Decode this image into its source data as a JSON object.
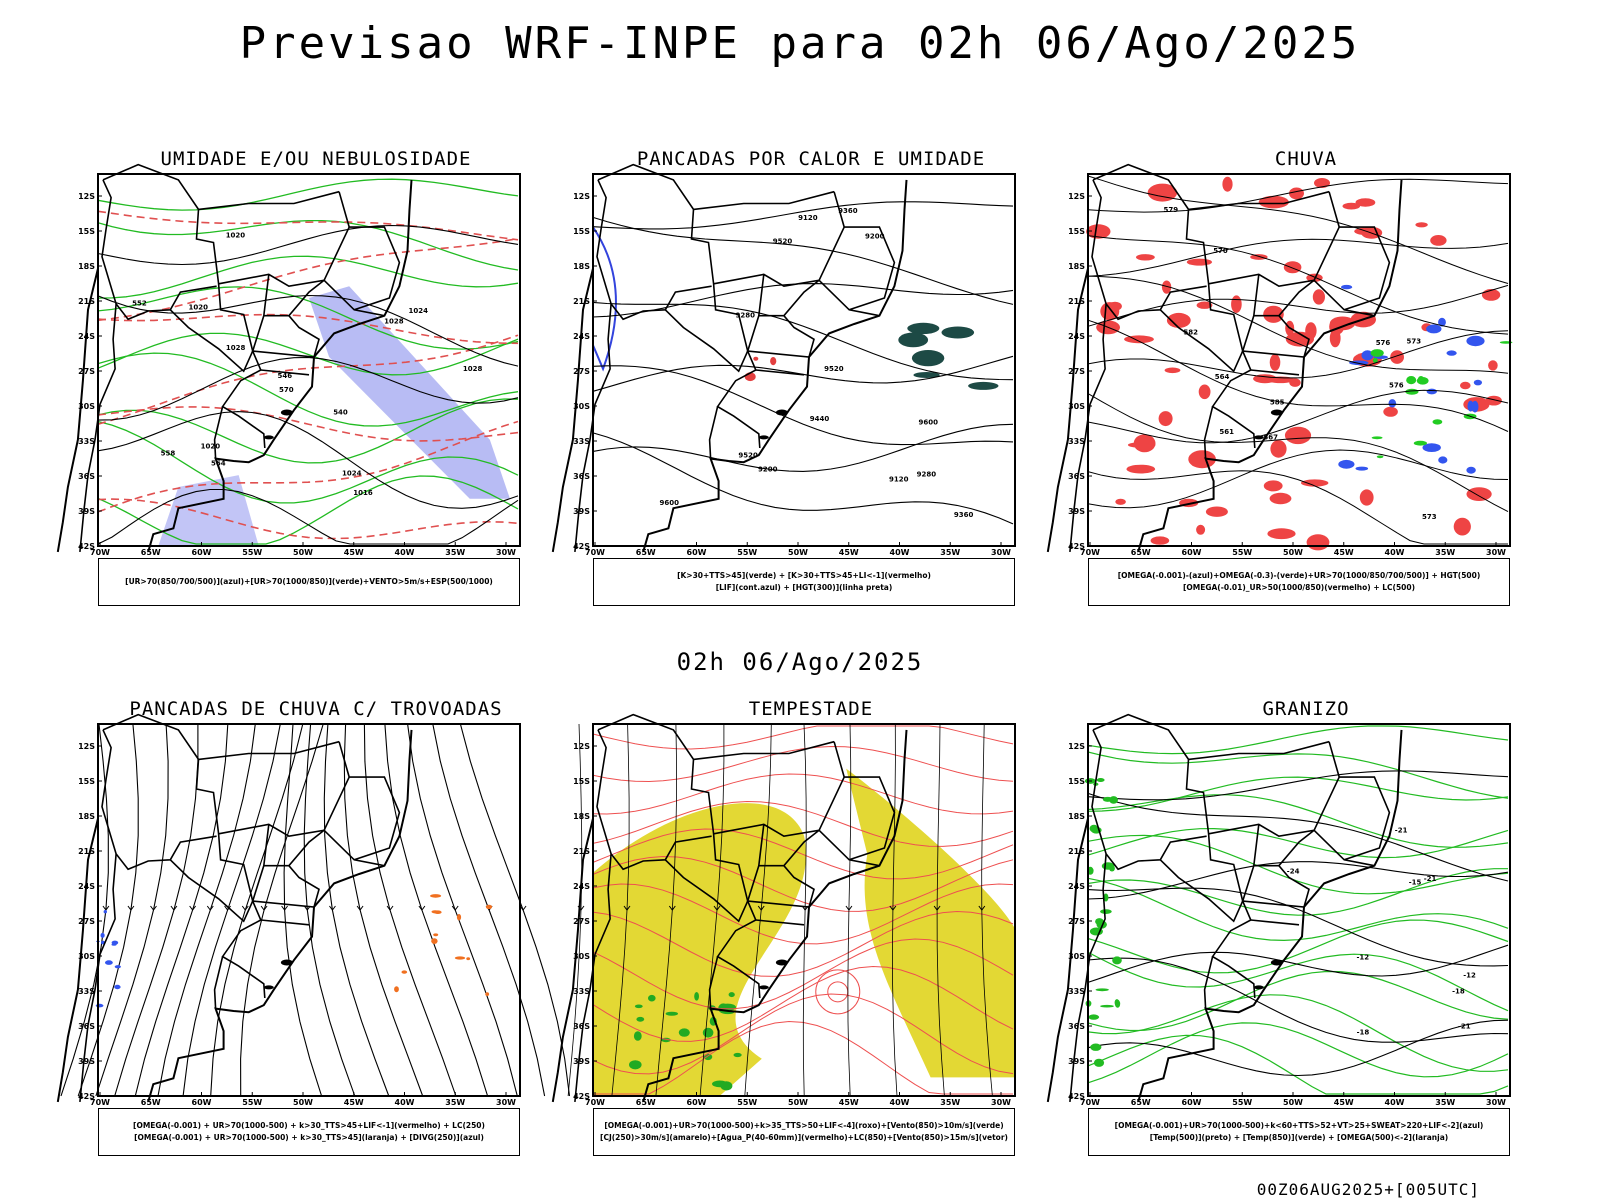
{
  "title": "Previsao WRF-INPE  para 02h 06/Ago/2025",
  "subtitle": "02h 06/Ago/2025",
  "footer_stamp": "00Z06AUG2025+[005UTC]",
  "chart_data": [
    {
      "type": "map",
      "title": "UMIDADE E/OU NEBULOSIDADE",
      "legend": [
        "[UR>70(850/700/500)](azul)+[UR>70(1000/850)](verde)+VENTO>5m/s+ESP(500/1000)"
      ],
      "contour_labels": [
        "1016",
        "1020",
        "1020",
        "1020",
        "1024",
        "1024",
        "1028",
        "1028",
        "570",
        "564",
        "558",
        "552",
        "546",
        "540",
        "1028"
      ],
      "xticks": [
        "70W",
        "65W",
        "60W",
        "55W",
        "50W",
        "45W",
        "40W",
        "35W",
        "30W"
      ],
      "yticks": [
        "12S",
        "15S",
        "18S",
        "21S",
        "24S",
        "27S",
        "30S",
        "33S",
        "36S",
        "39S",
        "42S"
      ]
    },
    {
      "type": "map",
      "title": "PANCADAS POR CALOR E UMIDADE",
      "legend": [
        "[K>30+TTS>45](verde) + [K>30+TTS>45+LI<-1](vermelho)",
        "[LIF](cont.azul) + [HGT(300)](linha preta)"
      ],
      "contour_labels": [
        "9600",
        "9600",
        "9520",
        "9440",
        "9520",
        "9360",
        "9280",
        "9200",
        "9120",
        "9520",
        "9360",
        "9280",
        "9200",
        "9120"
      ],
      "xticks": [
        "70W",
        "65W",
        "60W",
        "55W",
        "50W",
        "45W",
        "40W",
        "35W",
        "30W"
      ],
      "yticks": [
        "12S",
        "15S",
        "18S",
        "21S",
        "24S",
        "27S",
        "30S",
        "33S",
        "36S",
        "39S",
        "42S"
      ]
    },
    {
      "type": "map",
      "title": "CHUVA",
      "legend": [
        "[OMEGA(-0.001)-(azul)+OMEGA(-0.3)-(verde)+UR>70(1000/850/700/500)] + HGT(500)",
        "[OMEGA(-0.01)_UR>50(1000/850)(vermelho) + LC(500)"
      ],
      "contour_labels": [
        "585",
        "582",
        "579",
        "576",
        "573",
        "570",
        "567",
        "564",
        "561",
        "576",
        "573"
      ],
      "xticks": [
        "70W",
        "65W",
        "60W",
        "55W",
        "50W",
        "45W",
        "40W",
        "35W",
        "30W"
      ],
      "yticks": [
        "12S",
        "15S",
        "18S",
        "21S",
        "24S",
        "27S",
        "30S",
        "33S",
        "36S",
        "39S",
        "42S"
      ]
    },
    {
      "type": "map",
      "title": "PANCADAS DE CHUVA C/ TROVOADAS",
      "legend": [
        "[OMEGA(-0.001) + UR>70(1000-500) + k>30_TTS>45+LIF<-1](vermelho) + LC(250)",
        "[OMEGA(-0.001) + UR>70(1000-500) + k>30_TTS>45](laranja) + [DIVG(250)](azul)"
      ],
      "contour_labels": [],
      "xticks": [
        "70W",
        "65W",
        "60W",
        "55W",
        "50W",
        "45W",
        "40W",
        "35W",
        "30W"
      ],
      "yticks": [
        "12S",
        "15S",
        "18S",
        "21S",
        "24S",
        "27S",
        "30S",
        "33S",
        "36S",
        "39S",
        "42S"
      ]
    },
    {
      "type": "map",
      "title": "TEMPESTADE",
      "legend": [
        "[OMEGA(-0.001)+UR>70(1000-500)+k>35_TTS>50+LIF<-4](roxo)+[Vento(850)>10m/s](verde)",
        "[CJ(250)>30m/s](amarelo)+[Agua_P(40-60mm)](vermelho)+LC(850)+[Vento(850)>15m/s](vetor)"
      ],
      "contour_labels": [],
      "xticks": [
        "70W",
        "65W",
        "60W",
        "55W",
        "50W",
        "45W",
        "40W",
        "35W",
        "30W"
      ],
      "yticks": [
        "12S",
        "15S",
        "18S",
        "21S",
        "24S",
        "27S",
        "30S",
        "33S",
        "36S",
        "39S",
        "42S"
      ]
    },
    {
      "type": "map",
      "title": "GRANIZO",
      "legend": [
        "[OMEGA(-0.001)+UR>70(1000-500)+k<60+TTS>52+VT>25+SWEAT>220+LIF<-2](azul)",
        "[Temp(500)](preto) + [Temp(850)](verde) + [OMEGA(500)<-2](laranja)"
      ],
      "contour_labels": [
        "-12",
        "-12",
        "-15",
        "-18",
        "-18",
        "-21",
        "-21",
        "-24",
        "-21"
      ],
      "xticks": [
        "70W",
        "65W",
        "60W",
        "55W",
        "50W",
        "45W",
        "40W",
        "35W",
        "30W"
      ],
      "yticks": [
        "12S",
        "15S",
        "18S",
        "21S",
        "24S",
        "27S",
        "30S",
        "33S",
        "36S",
        "39S",
        "42S"
      ]
    }
  ]
}
